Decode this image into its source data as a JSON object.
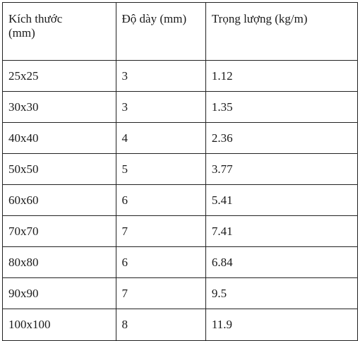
{
  "table": {
    "headers": [
      "Kích thước\n(mm)",
      "Độ dày (mm)",
      "Trọng lượng (kg/m)"
    ],
    "header_line1": "Kích thước",
    "header_line2": "(mm)",
    "header_thickness": "Độ dày (mm)",
    "header_weight": "Trọng lượng (kg/m)",
    "rows": [
      [
        "25x25",
        "3",
        "1.12"
      ],
      [
        "30x30",
        "3",
        "1.35"
      ],
      [
        "40x40",
        "4",
        "2.36"
      ],
      [
        "50x50",
        "5",
        "3.77"
      ],
      [
        "60x60",
        "6",
        "5.41"
      ],
      [
        "70x70",
        "7",
        "7.41"
      ],
      [
        "80x80",
        "6",
        "6.84"
      ],
      [
        "90x90",
        "7",
        "9.5"
      ],
      [
        "100x100",
        "8",
        "11.9"
      ]
    ]
  }
}
